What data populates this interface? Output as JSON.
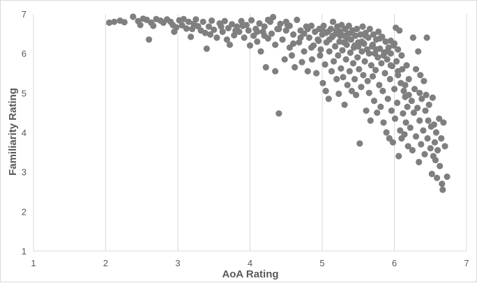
{
  "chart_data": {
    "type": "scatter",
    "xlabel": "AoA Rating",
    "ylabel": "Familiarity Rating",
    "xlim": [
      1,
      7
    ],
    "ylim": [
      1,
      7
    ],
    "x_ticks": [
      "1",
      "2",
      "3",
      "4",
      "5",
      "6",
      "7"
    ],
    "y_ticks": [
      "1",
      "2",
      "3",
      "4",
      "5",
      "6",
      "7"
    ],
    "grid": {
      "x": true,
      "y": false
    },
    "legend": "none",
    "marker_color": "#7f7f7f",
    "points": [
      [
        2.05,
        6.78
      ],
      [
        2.12,
        6.8
      ],
      [
        2.2,
        6.83
      ],
      [
        2.26,
        6.79
      ],
      [
        2.38,
        6.93
      ],
      [
        2.45,
        6.82
      ],
      [
        2.48,
        6.72
      ],
      [
        2.52,
        6.88
      ],
      [
        2.57,
        6.85
      ],
      [
        2.6,
        6.35
      ],
      [
        2.63,
        6.78
      ],
      [
        2.66,
        6.7
      ],
      [
        2.7,
        6.87
      ],
      [
        2.76,
        6.83
      ],
      [
        2.8,
        6.78
      ],
      [
        2.85,
        6.86
      ],
      [
        2.9,
        6.8
      ],
      [
        2.93,
        6.72
      ],
      [
        2.95,
        6.55
      ],
      [
        2.98,
        6.66
      ],
      [
        3.02,
        6.84
      ],
      [
        3.06,
        6.71
      ],
      [
        3.08,
        6.87
      ],
      [
        3.12,
        6.63
      ],
      [
        3.15,
        6.8
      ],
      [
        3.18,
        6.42
      ],
      [
        3.22,
        6.75
      ],
      [
        3.25,
        6.86
      ],
      [
        3.28,
        6.69
      ],
      [
        3.32,
        6.58
      ],
      [
        3.35,
        6.8
      ],
      [
        3.38,
        6.52
      ],
      [
        3.4,
        6.12
      ],
      [
        3.43,
        6.68
      ],
      [
        3.47,
        6.83
      ],
      [
        3.5,
        6.6
      ],
      [
        3.54,
        6.4
      ],
      [
        3.58,
        6.76
      ],
      [
        3.62,
        6.55
      ],
      [
        3.65,
        6.82
      ],
      [
        3.68,
        6.35
      ],
      [
        3.7,
        6.64
      ],
      [
        3.72,
        6.22
      ],
      [
        3.75,
        6.74
      ],
      [
        3.78,
        6.46
      ],
      [
        3.82,
        6.68
      ],
      [
        3.85,
        6.55
      ],
      [
        3.88,
        6.82
      ],
      [
        3.92,
        6.4
      ],
      [
        3.95,
        6.72
      ],
      [
        3.98,
        6.58
      ],
      [
        4.0,
        6.2
      ],
      [
        4.02,
        6.84
      ],
      [
        4.05,
        6.45
      ],
      [
        4.08,
        6.62
      ],
      [
        4.1,
        6.3
      ],
      [
        4.13,
        6.76
      ],
      [
        4.15,
        6.05
      ],
      [
        4.18,
        6.55
      ],
      [
        4.2,
        6.68
      ],
      [
        4.22,
        5.65
      ],
      [
        4.25,
        6.38
      ],
      [
        4.28,
        6.8
      ],
      [
        4.3,
        6.5
      ],
      [
        4.32,
        6.92
      ],
      [
        4.35,
        6.22
      ],
      [
        4.35,
        5.55
      ],
      [
        4.38,
        6.62
      ],
      [
        4.4,
        4.48
      ],
      [
        4.42,
        6.75
      ],
      [
        4.45,
        6.35
      ],
      [
        4.48,
        5.85
      ],
      [
        4.5,
        6.58
      ],
      [
        4.52,
        6.72
      ],
      [
        4.55,
        6.15
      ],
      [
        4.58,
        5.95
      ],
      [
        4.6,
        6.48
      ],
      [
        4.62,
        5.65
      ],
      [
        4.65,
        6.85
      ],
      [
        4.68,
        6.28
      ],
      [
        4.7,
        6.58
      ],
      [
        4.72,
        5.78
      ],
      [
        4.75,
        6.05
      ],
      [
        4.78,
        6.68
      ],
      [
        4.8,
        5.55
      ],
      [
        4.82,
        6.4
      ],
      [
        4.85,
        6.7
      ],
      [
        4.86,
        5.85
      ],
      [
        4.88,
        6.2
      ],
      [
        4.9,
        6.55
      ],
      [
        4.92,
        5.5
      ],
      [
        4.94,
        6.35
      ],
      [
        4.96,
        6.62
      ],
      [
        4.97,
        5.95
      ],
      [
        4.98,
        6.1
      ],
      [
        5.0,
        6.48
      ],
      [
        5.01,
        5.25
      ],
      [
        5.02,
        6.7
      ],
      [
        5.04,
        5.72
      ],
      [
        5.05,
        5.05
      ],
      [
        5.06,
        6.28
      ],
      [
        5.08,
        6.55
      ],
      [
        5.09,
        4.85
      ],
      [
        5.1,
        6.05
      ],
      [
        5.12,
        6.62
      ],
      [
        5.13,
        5.55
      ],
      [
        5.14,
        6.42
      ],
      [
        5.15,
        6.8
      ],
      [
        5.16,
        5.8
      ],
      [
        5.18,
        6.18
      ],
      [
        5.19,
        6.5
      ],
      [
        5.2,
        5.35
      ],
      [
        5.21,
        6.68
      ],
      [
        5.22,
        5.95
      ],
      [
        5.23,
        4.98
      ],
      [
        5.24,
        6.3
      ],
      [
        5.25,
        6.55
      ],
      [
        5.26,
        5.62
      ],
      [
        5.27,
        6.72
      ],
      [
        5.28,
        6.08
      ],
      [
        5.29,
        5.4
      ],
      [
        5.3,
        6.45
      ],
      [
        5.31,
        4.7
      ],
      [
        5.32,
        6.62
      ],
      [
        5.33,
        5.85
      ],
      [
        5.34,
        6.22
      ],
      [
        5.35,
        5.2
      ],
      [
        5.36,
        6.5
      ],
      [
        5.37,
        6.7
      ],
      [
        5.38,
        5.55
      ],
      [
        5.39,
        6.02
      ],
      [
        5.4,
        6.35
      ],
      [
        5.41,
        5.05
      ],
      [
        5.42,
        6.58
      ],
      [
        5.43,
        5.75
      ],
      [
        5.44,
        6.15
      ],
      [
        5.45,
        5.35
      ],
      [
        5.46,
        6.45
      ],
      [
        5.47,
        4.95
      ],
      [
        5.48,
        6.62
      ],
      [
        5.49,
        5.9
      ],
      [
        5.5,
        6.28
      ],
      [
        5.51,
        5.6
      ],
      [
        5.52,
        3.72
      ],
      [
        5.53,
        6.48
      ],
      [
        5.54,
        5.15
      ],
      [
        5.55,
        6.05
      ],
      [
        5.56,
        6.68
      ],
      [
        5.57,
        5.45
      ],
      [
        5.58,
        6.25
      ],
      [
        5.59,
        5.8
      ],
      [
        5.6,
        6.52
      ],
      [
        5.61,
        4.55
      ],
      [
        5.62,
        6.1
      ],
      [
        5.63,
        5.3
      ],
      [
        5.64,
        6.4
      ],
      [
        5.65,
        5.0
      ],
      [
        5.66,
        6.62
      ],
      [
        5.67,
        4.3
      ],
      [
        5.68,
        5.7
      ],
      [
        5.69,
        6.18
      ],
      [
        5.7,
        5.42
      ],
      [
        5.71,
        6.48
      ],
      [
        5.72,
        4.8
      ],
      [
        5.73,
        6.0
      ],
      [
        5.74,
        5.58
      ],
      [
        5.75,
        6.35
      ],
      [
        5.76,
        4.5
      ],
      [
        5.77,
        5.9
      ],
      [
        5.78,
        6.55
      ],
      [
        5.79,
        5.2
      ],
      [
        5.8,
        6.12
      ],
      [
        5.81,
        4.65
      ],
      [
        5.82,
        5.75
      ],
      [
        5.83,
        6.42
      ],
      [
        5.84,
        5.05
      ],
      [
        5.85,
        4.25
      ],
      [
        5.86,
        6.02
      ],
      [
        5.87,
        5.5
      ],
      [
        5.88,
        6.3
      ],
      [
        5.89,
        4.0
      ],
      [
        5.9,
        5.85
      ],
      [
        5.91,
        4.85
      ],
      [
        5.92,
        6.15
      ],
      [
        5.93,
        3.85
      ],
      [
        5.94,
        5.35
      ],
      [
        5.95,
        6.0
      ],
      [
        5.96,
        4.55
      ],
      [
        5.97,
        5.68
      ],
      [
        5.98,
        3.75
      ],
      [
        5.99,
        6.2
      ],
      [
        6.0,
        5.1
      ],
      [
        6.01,
        4.35
      ],
      [
        6.02,
        6.65
      ],
      [
        6.03,
        5.8
      ],
      [
        6.04,
        4.75
      ],
      [
        6.05,
        5.45
      ],
      [
        6.06,
        3.4
      ],
      [
        6.07,
        6.58
      ],
      [
        6.08,
        4.05
      ],
      [
        6.09,
        5.25
      ],
      [
        6.1,
        3.85
      ],
      [
        6.11,
        5.6
      ],
      [
        6.12,
        4.48
      ],
      [
        6.13,
        5.05
      ],
      [
        6.14,
        3.95
      ],
      [
        6.15,
        4.9
      ],
      [
        6.16,
        4.25
      ],
      [
        6.17,
        5.7
      ],
      [
        6.18,
        4.65
      ],
      [
        6.19,
        3.65
      ],
      [
        6.2,
        5.35
      ],
      [
        6.22,
        4.12
      ],
      [
        6.24,
        4.8
      ],
      [
        6.25,
        3.55
      ],
      [
        6.26,
        6.4
      ],
      [
        6.27,
        4.5
      ],
      [
        6.28,
        5.1
      ],
      [
        6.3,
        3.9
      ],
      [
        6.32,
        4.62
      ],
      [
        6.33,
        6.05
      ],
      [
        6.34,
        3.25
      ],
      [
        6.35,
        4.3
      ],
      [
        6.36,
        5.45
      ],
      [
        6.37,
        3.7
      ],
      [
        6.38,
        4.85
      ],
      [
        6.4,
        4.05
      ],
      [
        6.41,
        5.3
      ],
      [
        6.42,
        3.45
      ],
      [
        6.43,
        4.55
      ],
      [
        6.44,
        4.95
      ],
      [
        6.45,
        6.4
      ],
      [
        6.46,
        3.85
      ],
      [
        6.47,
        4.3
      ],
      [
        6.48,
        4.7
      ],
      [
        6.5,
        3.6
      ],
      [
        6.51,
        4.15
      ],
      [
        6.52,
        2.95
      ],
      [
        6.53,
        4.88
      ],
      [
        6.54,
        3.4
      ],
      [
        6.55,
        4.2
      ],
      [
        6.56,
        3.75
      ],
      [
        6.57,
        3.3
      ],
      [
        6.58,
        4.0
      ],
      [
        6.59,
        2.85
      ],
      [
        6.6,
        3.55
      ],
      [
        6.62,
        4.35
      ],
      [
        6.63,
        3.15
      ],
      [
        6.65,
        3.85
      ],
      [
        6.66,
        2.7
      ],
      [
        6.67,
        2.55
      ],
      [
        6.68,
        4.25
      ],
      [
        6.7,
        3.65
      ],
      [
        6.73,
        2.88
      ],
      [
        4.55,
        6.7
      ],
      [
        4.7,
        6.4
      ],
      [
        4.85,
        6.15
      ],
      [
        5.0,
        6.6
      ],
      [
        5.1,
        6.35
      ],
      [
        5.2,
        6.58
      ],
      [
        5.3,
        6.28
      ],
      [
        5.4,
        6.52
      ],
      [
        5.5,
        6.18
      ],
      [
        5.6,
        6.45
      ],
      [
        5.7,
        6.22
      ],
      [
        5.8,
        6.38
      ],
      [
        5.9,
        6.05
      ],
      [
        6.0,
        6.25
      ],
      [
        6.05,
        6.1
      ],
      [
        6.1,
        5.95
      ],
      [
        4.1,
        6.55
      ],
      [
        4.2,
        6.45
      ],
      [
        4.4,
        6.62
      ],
      [
        4.6,
        6.25
      ],
      [
        4.75,
        6.5
      ],
      [
        4.95,
        6.32
      ],
      [
        5.15,
        6.45
      ],
      [
        5.35,
        6.38
      ],
      [
        5.55,
        6.3
      ],
      [
        5.75,
        6.1
      ],
      [
        5.95,
        6.32
      ],
      [
        3.2,
        6.62
      ],
      [
        3.45,
        6.48
      ],
      [
        3.6,
        6.68
      ],
      [
        3.8,
        6.58
      ],
      [
        3.9,
        6.7
      ],
      [
        4.25,
        6.85
      ],
      [
        4.5,
        6.8
      ],
      [
        4.8,
        6.62
      ],
      [
        5.05,
        6.52
      ],
      [
        5.25,
        6.45
      ],
      [
        5.45,
        6.2
      ],
      [
        5.65,
        6.0
      ],
      [
        5.85,
        5.95
      ],
      [
        5.95,
        5.7
      ],
      [
        6.05,
        5.55
      ],
      [
        6.15,
        5.2
      ],
      [
        6.2,
        4.95
      ],
      [
        6.3,
        5.6
      ],
      [
        6.35,
        5.0
      ]
    ]
  }
}
